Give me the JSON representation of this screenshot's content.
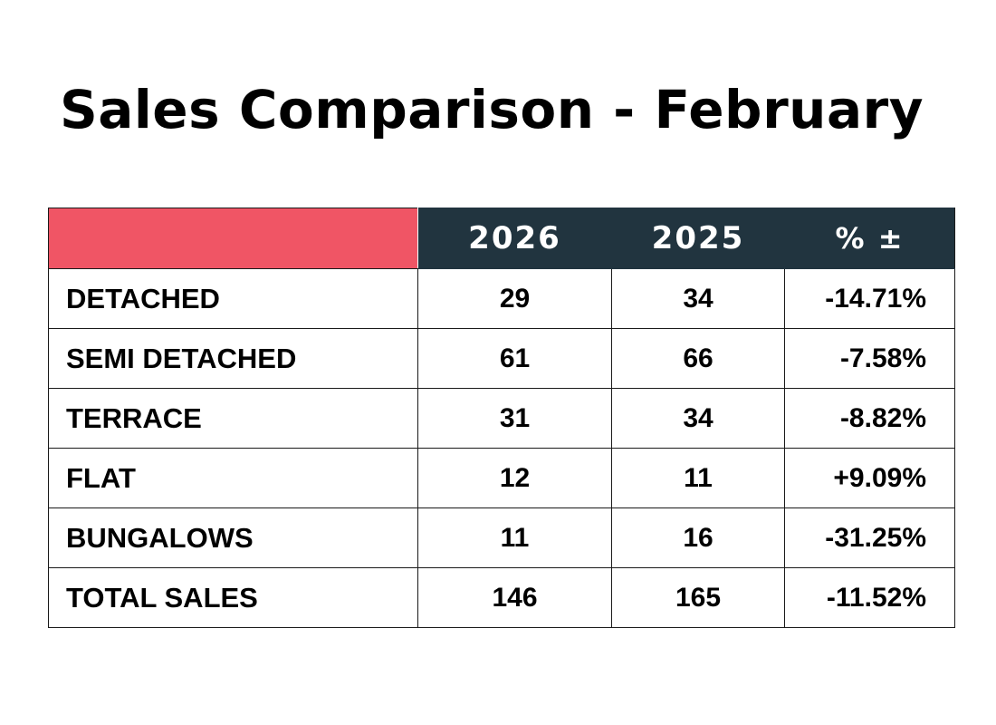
{
  "title": "Sales Comparison - February",
  "colors": {
    "header_bg": "#21343f",
    "corner_accent": "#f05565",
    "header_text": "#ffffff",
    "body_text": "#000000"
  },
  "chart_data": {
    "type": "table",
    "title": "Sales Comparison - February",
    "columns": [
      "",
      "2026",
      "2025",
      "% ±"
    ],
    "rows": [
      {
        "label": "DETACHED",
        "y2026": "29",
        "y2025": "34",
        "change": "-14.71%"
      },
      {
        "label": "SEMI DETACHED",
        "y2026": "61",
        "y2025": "66",
        "change": "-7.58%"
      },
      {
        "label": "TERRACE",
        "y2026": "31",
        "y2025": "34",
        "change": "-8.82%"
      },
      {
        "label": "FLAT",
        "y2026": "12",
        "y2025": "11",
        "change": "+9.09%"
      },
      {
        "label": "BUNGALOWS",
        "y2026": "11",
        "y2025": "16",
        "change": "-31.25%"
      },
      {
        "label": "TOTAL SALES",
        "y2026": "146",
        "y2025": "165",
        "change": "-11.52%"
      }
    ]
  }
}
